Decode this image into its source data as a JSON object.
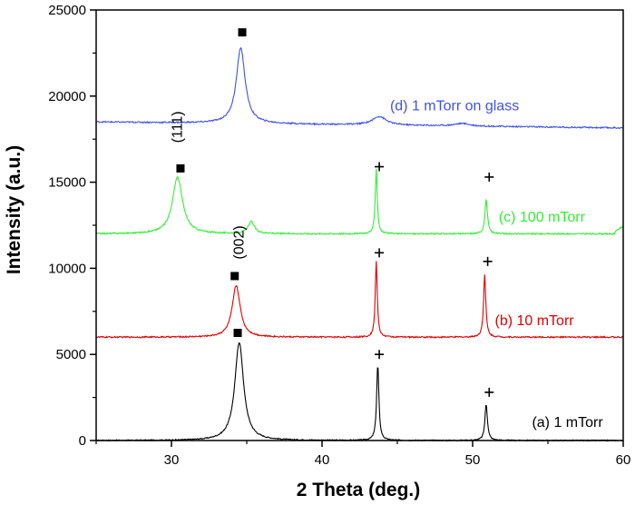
{
  "chart_data": {
    "type": "line",
    "title": "",
    "xlabel": "2 Theta (deg.)",
    "ylabel": "Intensity (a.u.)",
    "xlim": [
      25,
      60
    ],
    "ylim": [
      0,
      25000
    ],
    "xticks": [
      30,
      40,
      50,
      60
    ],
    "yticks": [
      0,
      5000,
      10000,
      15000,
      20000,
      25000
    ],
    "series": [
      {
        "name": "(a) 1 mTorr",
        "color": "#000000",
        "baseline": 0,
        "noise": 30,
        "peaks": [
          {
            "x": 34.5,
            "height": 5700,
            "width": 0.35
          },
          {
            "x": 43.7,
            "height": 4400,
            "width": 0.09
          },
          {
            "x": 50.9,
            "height": 2100,
            "width": 0.1
          }
        ]
      },
      {
        "name": "(b) 10 mTorr",
        "color": "#e00000",
        "baseline": 6000,
        "noise": 40,
        "peaks": [
          {
            "x": 34.3,
            "height": 3000,
            "width": 0.32
          },
          {
            "x": 43.6,
            "height": 4400,
            "width": 0.08
          },
          {
            "x": 50.8,
            "height": 3600,
            "width": 0.09
          }
        ]
      },
      {
        "name": "(c) 100 mTorr",
        "color": "#33ee33",
        "baseline": 12000,
        "noise": 40,
        "end_rise": 500,
        "peaks": [
          {
            "x": 30.4,
            "height": 3300,
            "width": 0.4
          },
          {
            "x": 35.3,
            "height": 700,
            "width": 0.25
          },
          {
            "x": 43.6,
            "height": 3800,
            "width": 0.08
          },
          {
            "x": 50.9,
            "height": 2000,
            "width": 0.1
          }
        ]
      },
      {
        "name": "(d) 1 mTorr on glass",
        "color": "#3f51e6",
        "baseline": 18500,
        "end_baseline": 18150,
        "noise": 40,
        "peaks": [
          {
            "x": 34.6,
            "height": 4400,
            "width": 0.35
          },
          {
            "x": 43.8,
            "height": 500,
            "width": 0.55
          },
          {
            "x": 49.3,
            "height": 150,
            "width": 0.6
          }
        ]
      }
    ],
    "annotations": [
      {
        "text": "(111)",
        "x": 30.7,
        "y": 18200,
        "rotate": true
      },
      {
        "text": "(002)",
        "x": 34.8,
        "y": 11500,
        "rotate": true
      }
    ],
    "markers": [
      {
        "symbol": "square",
        "x": 34.7,
        "y": 23700
      },
      {
        "symbol": "square",
        "x": 30.6,
        "y": 15800
      },
      {
        "symbol": "square",
        "x": 34.2,
        "y": 9550
      },
      {
        "symbol": "square",
        "x": 34.4,
        "y": 6250
      },
      {
        "symbol": "plus",
        "x": 43.8,
        "y": 15900
      },
      {
        "symbol": "plus",
        "x": 51.1,
        "y": 15300
      },
      {
        "symbol": "plus",
        "x": 43.8,
        "y": 10900
      },
      {
        "symbol": "plus",
        "x": 51.0,
        "y": 10400
      },
      {
        "symbol": "plus",
        "x": 43.8,
        "y": 5000
      },
      {
        "symbol": "plus",
        "x": 51.1,
        "y": 2800
      }
    ],
    "labels": [
      {
        "text": "(d) 1 mTorr on glass",
        "x": 48.8,
        "y": 19170,
        "color": "#3f51e6"
      },
      {
        "text": "(c) 100 mTorr",
        "x": 54.6,
        "y": 12700,
        "color": "#33ee33"
      },
      {
        "text": "(b) 10 mTorr",
        "x": 54.1,
        "y": 6700,
        "color": "#e00000"
      },
      {
        "text": "(a) 1 mTorr",
        "x": 56.3,
        "y": 800,
        "color": "#000000"
      }
    ]
  }
}
